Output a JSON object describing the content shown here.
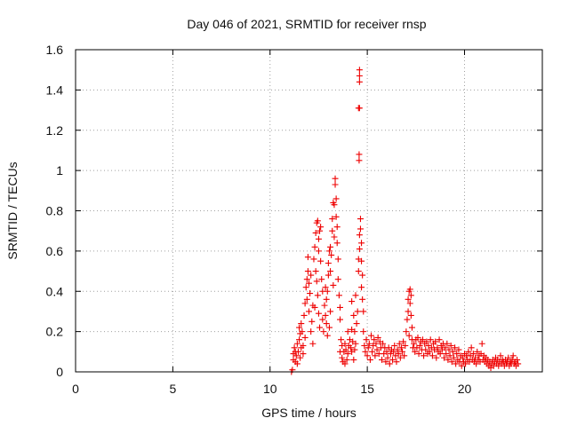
{
  "chart_data": {
    "type": "scatter",
    "title": "Day 046 of 2021, SRMTID for receiver rnsp",
    "xlabel": "GPS time / hours",
    "ylabel": "SRMTID / TECUs",
    "xlim": [
      0,
      24
    ],
    "ylim": [
      0,
      1.6
    ],
    "xticks": [
      0,
      5,
      10,
      15,
      20
    ],
    "xtick_labels": [
      "0",
      "5",
      "10",
      "15",
      "20"
    ],
    "yticks": [
      0,
      0.2,
      0.4,
      0.6,
      0.8,
      1,
      1.2,
      1.4,
      1.6
    ],
    "ytick_labels": [
      "0",
      "0.2",
      "0.4",
      "0.6",
      "0.8",
      "1",
      "1.2",
      "1.4",
      "1.6"
    ],
    "grid": true,
    "marker": "plus",
    "series": [
      {
        "name": "SRMTID",
        "color": "#ee0000",
        "points": [
          [
            11.1,
            0.0
          ],
          [
            11.15,
            0.01
          ],
          [
            11.2,
            0.06
          ],
          [
            11.2,
            0.09
          ],
          [
            11.25,
            0.12
          ],
          [
            11.3,
            0.05
          ],
          [
            11.3,
            0.1
          ],
          [
            11.35,
            0.08
          ],
          [
            11.4,
            0.14
          ],
          [
            11.4,
            0.04
          ],
          [
            11.45,
            0.1
          ],
          [
            11.5,
            0.16
          ],
          [
            11.5,
            0.22
          ],
          [
            11.55,
            0.07
          ],
          [
            11.55,
            0.19
          ],
          [
            11.6,
            0.24
          ],
          [
            11.6,
            0.12
          ],
          [
            11.65,
            0.2
          ],
          [
            11.7,
            0.13
          ],
          [
            11.7,
            0.09
          ],
          [
            11.75,
            0.28
          ],
          [
            11.8,
            0.34
          ],
          [
            11.8,
            0.17
          ],
          [
            11.85,
            0.42
          ],
          [
            11.9,
            0.46
          ],
          [
            11.9,
            0.36
          ],
          [
            11.95,
            0.5
          ],
          [
            11.95,
            0.57
          ],
          [
            12.0,
            0.44
          ],
          [
            12.0,
            0.3
          ],
          [
            12.05,
            0.39
          ],
          [
            12.1,
            0.48
          ],
          [
            12.1,
            0.2
          ],
          [
            12.15,
            0.25
          ],
          [
            12.2,
            0.14
          ],
          [
            12.2,
            0.33
          ],
          [
            12.25,
            0.56
          ],
          [
            12.3,
            0.62
          ],
          [
            12.35,
            0.69
          ],
          [
            12.4,
            0.74
          ],
          [
            12.45,
            0.75
          ],
          [
            12.5,
            0.66
          ],
          [
            12.5,
            0.6
          ],
          [
            12.55,
            0.7
          ],
          [
            12.6,
            0.72
          ],
          [
            12.6,
            0.55
          ],
          [
            12.35,
            0.5
          ],
          [
            12.4,
            0.45
          ],
          [
            12.45,
            0.38
          ],
          [
            12.5,
            0.29
          ],
          [
            12.55,
            0.22
          ],
          [
            12.3,
            0.32
          ],
          [
            12.65,
            0.46
          ],
          [
            12.7,
            0.4
          ],
          [
            12.7,
            0.26
          ],
          [
            12.75,
            0.2
          ],
          [
            12.8,
            0.33
          ],
          [
            12.85,
            0.42
          ],
          [
            12.9,
            0.36
          ],
          [
            12.95,
            0.4
          ],
          [
            13.0,
            0.48
          ],
          [
            13.0,
            0.54
          ],
          [
            13.05,
            0.6
          ],
          [
            13.1,
            0.62
          ],
          [
            13.1,
            0.5
          ],
          [
            13.15,
            0.58
          ],
          [
            13.2,
            0.7
          ],
          [
            13.2,
            0.76
          ],
          [
            13.25,
            0.84
          ],
          [
            13.3,
            0.83
          ],
          [
            13.35,
            0.93
          ],
          [
            13.35,
            0.96
          ],
          [
            13.4,
            0.86
          ],
          [
            13.4,
            0.77
          ],
          [
            13.45,
            0.72
          ],
          [
            13.3,
            0.67
          ],
          [
            13.45,
            0.64
          ],
          [
            13.5,
            0.56
          ],
          [
            13.5,
            0.46
          ],
          [
            13.55,
            0.38
          ],
          [
            13.6,
            0.32
          ],
          [
            13.6,
            0.26
          ],
          [
            13.25,
            0.43
          ],
          [
            13.05,
            0.22
          ],
          [
            13.1,
            0.3
          ],
          [
            12.95,
            0.18
          ],
          [
            12.9,
            0.24
          ],
          [
            12.85,
            0.28
          ],
          [
            13.6,
            0.1
          ],
          [
            13.65,
            0.16
          ],
          [
            13.7,
            0.07
          ],
          [
            13.7,
            0.13
          ],
          [
            13.75,
            0.05
          ],
          [
            13.8,
            0.1
          ],
          [
            13.85,
            0.04
          ],
          [
            13.85,
            0.14
          ],
          [
            13.9,
            0.11
          ],
          [
            13.95,
            0.06
          ],
          [
            14.0,
            0.2
          ],
          [
            14.0,
            0.09
          ],
          [
            14.05,
            0.13
          ],
          [
            14.1,
            0.16
          ],
          [
            14.15,
            0.12
          ],
          [
            14.2,
            0.21
          ],
          [
            14.2,
            0.1
          ],
          [
            14.25,
            0.15
          ],
          [
            14.3,
            0.06
          ],
          [
            14.35,
            0.11
          ],
          [
            14.4,
            0.14
          ],
          [
            14.2,
            0.35
          ],
          [
            14.3,
            0.28
          ],
          [
            14.4,
            0.38
          ],
          [
            14.5,
            0.3
          ],
          [
            14.45,
            0.24
          ],
          [
            14.35,
            0.2
          ],
          [
            14.55,
            0.5
          ],
          [
            14.55,
            0.56
          ],
          [
            14.6,
            0.61
          ],
          [
            14.6,
            0.68
          ],
          [
            14.65,
            0.71
          ],
          [
            14.65,
            0.76
          ],
          [
            14.7,
            0.64
          ],
          [
            14.7,
            0.55
          ],
          [
            14.75,
            0.48
          ],
          [
            14.7,
            0.42
          ],
          [
            14.75,
            0.36
          ],
          [
            14.8,
            0.3
          ],
          [
            14.58,
            1.05
          ],
          [
            14.58,
            1.08
          ],
          [
            14.55,
            1.31
          ],
          [
            14.6,
            1.31
          ],
          [
            14.6,
            1.44
          ],
          [
            14.6,
            1.47
          ],
          [
            14.6,
            1.5
          ],
          [
            14.8,
            0.2
          ],
          [
            14.85,
            0.13
          ],
          [
            14.9,
            0.1
          ],
          [
            14.95,
            0.16
          ],
          [
            15.0,
            0.08
          ],
          [
            15.05,
            0.12
          ],
          [
            15.1,
            0.14
          ],
          [
            15.15,
            0.06
          ],
          [
            15.2,
            0.18
          ],
          [
            15.25,
            0.1
          ],
          [
            15.3,
            0.13
          ],
          [
            15.35,
            0.16
          ],
          [
            15.4,
            0.08
          ],
          [
            15.45,
            0.14
          ],
          [
            15.5,
            0.11
          ],
          [
            15.55,
            0.17
          ],
          [
            15.6,
            0.09
          ],
          [
            15.65,
            0.15
          ],
          [
            15.7,
            0.12
          ],
          [
            15.75,
            0.06
          ],
          [
            15.8,
            0.14
          ],
          [
            15.85,
            0.09
          ],
          [
            15.9,
            0.12
          ],
          [
            15.95,
            0.05
          ],
          [
            16.0,
            0.1
          ],
          [
            16.05,
            0.07
          ],
          [
            16.1,
            0.12
          ],
          [
            16.15,
            0.04
          ],
          [
            16.2,
            0.09
          ],
          [
            16.25,
            0.11
          ],
          [
            16.3,
            0.06
          ],
          [
            16.35,
            0.1
          ],
          [
            16.4,
            0.13
          ],
          [
            16.45,
            0.08
          ],
          [
            16.5,
            0.05
          ],
          [
            16.55,
            0.11
          ],
          [
            16.6,
            0.09
          ],
          [
            16.65,
            0.14
          ],
          [
            16.7,
            0.07
          ],
          [
            16.75,
            0.12
          ],
          [
            16.8,
            0.1
          ],
          [
            16.85,
            0.15
          ],
          [
            16.9,
            0.08
          ],
          [
            16.95,
            0.13
          ],
          [
            17.0,
            0.2
          ],
          [
            17.05,
            0.26
          ],
          [
            17.1,
            0.3
          ],
          [
            17.1,
            0.36
          ],
          [
            17.15,
            0.4
          ],
          [
            17.2,
            0.41
          ],
          [
            17.2,
            0.34
          ],
          [
            17.25,
            0.38
          ],
          [
            17.25,
            0.28
          ],
          [
            17.3,
            0.22
          ],
          [
            17.15,
            0.18
          ],
          [
            17.3,
            0.16
          ],
          [
            17.35,
            0.12
          ],
          [
            17.4,
            0.14
          ],
          [
            17.45,
            0.1
          ],
          [
            17.5,
            0.16
          ],
          [
            17.55,
            0.12
          ],
          [
            17.6,
            0.17
          ],
          [
            17.65,
            0.09
          ],
          [
            17.7,
            0.13
          ],
          [
            17.75,
            0.15
          ],
          [
            17.8,
            0.11
          ],
          [
            17.85,
            0.16
          ],
          [
            17.9,
            0.08
          ],
          [
            17.95,
            0.14
          ],
          [
            18.0,
            0.11
          ],
          [
            18.05,
            0.15
          ],
          [
            18.1,
            0.09
          ],
          [
            18.15,
            0.13
          ],
          [
            18.2,
            0.1
          ],
          [
            18.25,
            0.16
          ],
          [
            18.3,
            0.12
          ],
          [
            18.35,
            0.08
          ],
          [
            18.4,
            0.14
          ],
          [
            18.45,
            0.11
          ],
          [
            18.5,
            0.15
          ],
          [
            18.55,
            0.07
          ],
          [
            18.6,
            0.12
          ],
          [
            18.65,
            0.1
          ],
          [
            18.7,
            0.16
          ],
          [
            18.75,
            0.09
          ],
          [
            18.8,
            0.13
          ],
          [
            18.85,
            0.11
          ],
          [
            18.9,
            0.14
          ],
          [
            18.95,
            0.07
          ],
          [
            19.0,
            0.12
          ],
          [
            19.05,
            0.09
          ],
          [
            19.1,
            0.14
          ],
          [
            19.15,
            0.06
          ],
          [
            19.2,
            0.11
          ],
          [
            19.25,
            0.08
          ],
          [
            19.3,
            0.13
          ],
          [
            19.35,
            0.05
          ],
          [
            19.4,
            0.1
          ],
          [
            19.45,
            0.07
          ],
          [
            19.5,
            0.12
          ],
          [
            19.55,
            0.04
          ],
          [
            19.6,
            0.09
          ],
          [
            19.65,
            0.06
          ],
          [
            19.7,
            0.11
          ],
          [
            19.75,
            0.05
          ],
          [
            19.8,
            0.08
          ],
          [
            19.85,
            0.03
          ],
          [
            19.9,
            0.07
          ],
          [
            19.95,
            0.05
          ],
          [
            20.0,
            0.09
          ],
          [
            20.05,
            0.04
          ],
          [
            20.1,
            0.08
          ],
          [
            20.15,
            0.06
          ],
          [
            20.2,
            0.1
          ],
          [
            20.25,
            0.05
          ],
          [
            20.3,
            0.08
          ],
          [
            20.35,
            0.12
          ],
          [
            20.4,
            0.06
          ],
          [
            20.45,
            0.09
          ],
          [
            20.5,
            0.05
          ],
          [
            20.55,
            0.07
          ],
          [
            20.6,
            0.04
          ],
          [
            20.65,
            0.1
          ],
          [
            20.7,
            0.06
          ],
          [
            20.75,
            0.08
          ],
          [
            20.8,
            0.05
          ],
          [
            20.85,
            0.09
          ],
          [
            20.9,
            0.14
          ],
          [
            20.95,
            0.06
          ],
          [
            21.0,
            0.08
          ],
          [
            21.05,
            0.05
          ],
          [
            21.1,
            0.07
          ],
          [
            21.15,
            0.04
          ],
          [
            21.2,
            0.06
          ],
          [
            21.25,
            0.03
          ],
          [
            21.3,
            0.05
          ],
          [
            21.35,
            0.02
          ],
          [
            21.4,
            0.04
          ],
          [
            21.45,
            0.06
          ],
          [
            21.5,
            0.03
          ],
          [
            21.55,
            0.05
          ],
          [
            21.6,
            0.07
          ],
          [
            21.65,
            0.04
          ],
          [
            21.7,
            0.06
          ],
          [
            21.75,
            0.03
          ],
          [
            21.8,
            0.05
          ],
          [
            21.85,
            0.08
          ],
          [
            21.9,
            0.04
          ],
          [
            21.95,
            0.06
          ],
          [
            22.0,
            0.05
          ],
          [
            22.05,
            0.03
          ],
          [
            22.1,
            0.06
          ],
          [
            22.15,
            0.04
          ],
          [
            22.2,
            0.05
          ],
          [
            22.25,
            0.07
          ],
          [
            22.3,
            0.03
          ],
          [
            22.35,
            0.05
          ],
          [
            22.4,
            0.04
          ],
          [
            22.45,
            0.06
          ],
          [
            22.5,
            0.08
          ],
          [
            22.55,
            0.04
          ],
          [
            22.6,
            0.05
          ],
          [
            22.65,
            0.03
          ],
          [
            22.7,
            0.06
          ],
          [
            22.75,
            0.04
          ]
        ]
      }
    ]
  }
}
